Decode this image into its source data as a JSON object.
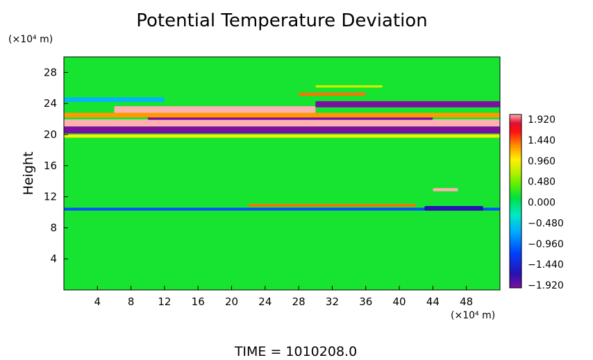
{
  "chart_data": {
    "type": "heatmap",
    "title": "Potential Temperature Deviation",
    "ylabel": "Height",
    "yunit": "(×10⁴ m)",
    "xunit": "(×10⁴ m)",
    "footer": "TIME  =  1010208.0",
    "xlim": [
      0,
      52
    ],
    "ylim": [
      0,
      30
    ],
    "xticks": [
      4,
      8,
      12,
      16,
      20,
      24,
      28,
      32,
      36,
      40,
      44,
      48
    ],
    "yticks": [
      4,
      8,
      12,
      16,
      20,
      24,
      28
    ],
    "colorbar": {
      "labels": [
        "1.920",
        "1.440",
        "0.960",
        "0.480",
        "0.000",
        "−0.480",
        "−0.960",
        "−1.440",
        "−1.920"
      ],
      "range": [
        -1.92,
        1.92
      ]
    },
    "background_value": 0.15,
    "features": [
      {
        "kind": "band",
        "y": 20.6,
        "thickness": 0.9,
        "x_start": 0,
        "x_end": 52,
        "value": -1.92
      },
      {
        "kind": "band",
        "y": 21.5,
        "thickness": 0.9,
        "x_start": 0,
        "x_end": 52,
        "value": 1.92
      },
      {
        "kind": "band",
        "y": 22.3,
        "thickness": 0.8,
        "x_start": 10,
        "x_end": 44,
        "value": -1.92
      },
      {
        "kind": "band",
        "y": 23.2,
        "thickness": 0.9,
        "x_start": 6,
        "x_end": 30,
        "value": 1.92
      },
      {
        "kind": "band",
        "y": 23.9,
        "thickness": 0.8,
        "x_start": 30,
        "x_end": 52,
        "value": -1.92
      },
      {
        "kind": "band",
        "y": 22.5,
        "thickness": 0.6,
        "x_start": 0,
        "x_end": 52,
        "value": 1.2
      },
      {
        "kind": "band",
        "y": 19.8,
        "thickness": 0.4,
        "x_start": 0,
        "x_end": 52,
        "value": 0.9
      },
      {
        "kind": "band",
        "y": 10.4,
        "thickness": 0.35,
        "x_start": 0,
        "x_end": 52,
        "value": -1.1
      },
      {
        "kind": "band",
        "y": 10.9,
        "thickness": 0.35,
        "x_start": 22,
        "x_end": 42,
        "value": 1.3
      },
      {
        "kind": "band",
        "y": 10.5,
        "thickness": 0.6,
        "x_start": 43,
        "x_end": 50,
        "value": -1.6
      },
      {
        "kind": "band",
        "y": 12.9,
        "thickness": 0.4,
        "x_start": 44,
        "x_end": 47,
        "value": 1.92
      },
      {
        "kind": "band",
        "y": 25.2,
        "thickness": 0.4,
        "x_start": 28,
        "x_end": 36,
        "value": 1.3
      },
      {
        "kind": "band",
        "y": 26.2,
        "thickness": 0.3,
        "x_start": 30,
        "x_end": 38,
        "value": 0.7
      },
      {
        "kind": "band",
        "y": 24.5,
        "thickness": 0.6,
        "x_start": 0,
        "x_end": 12,
        "value": -0.6
      }
    ],
    "grid": false,
    "legend": "right colorbar"
  }
}
